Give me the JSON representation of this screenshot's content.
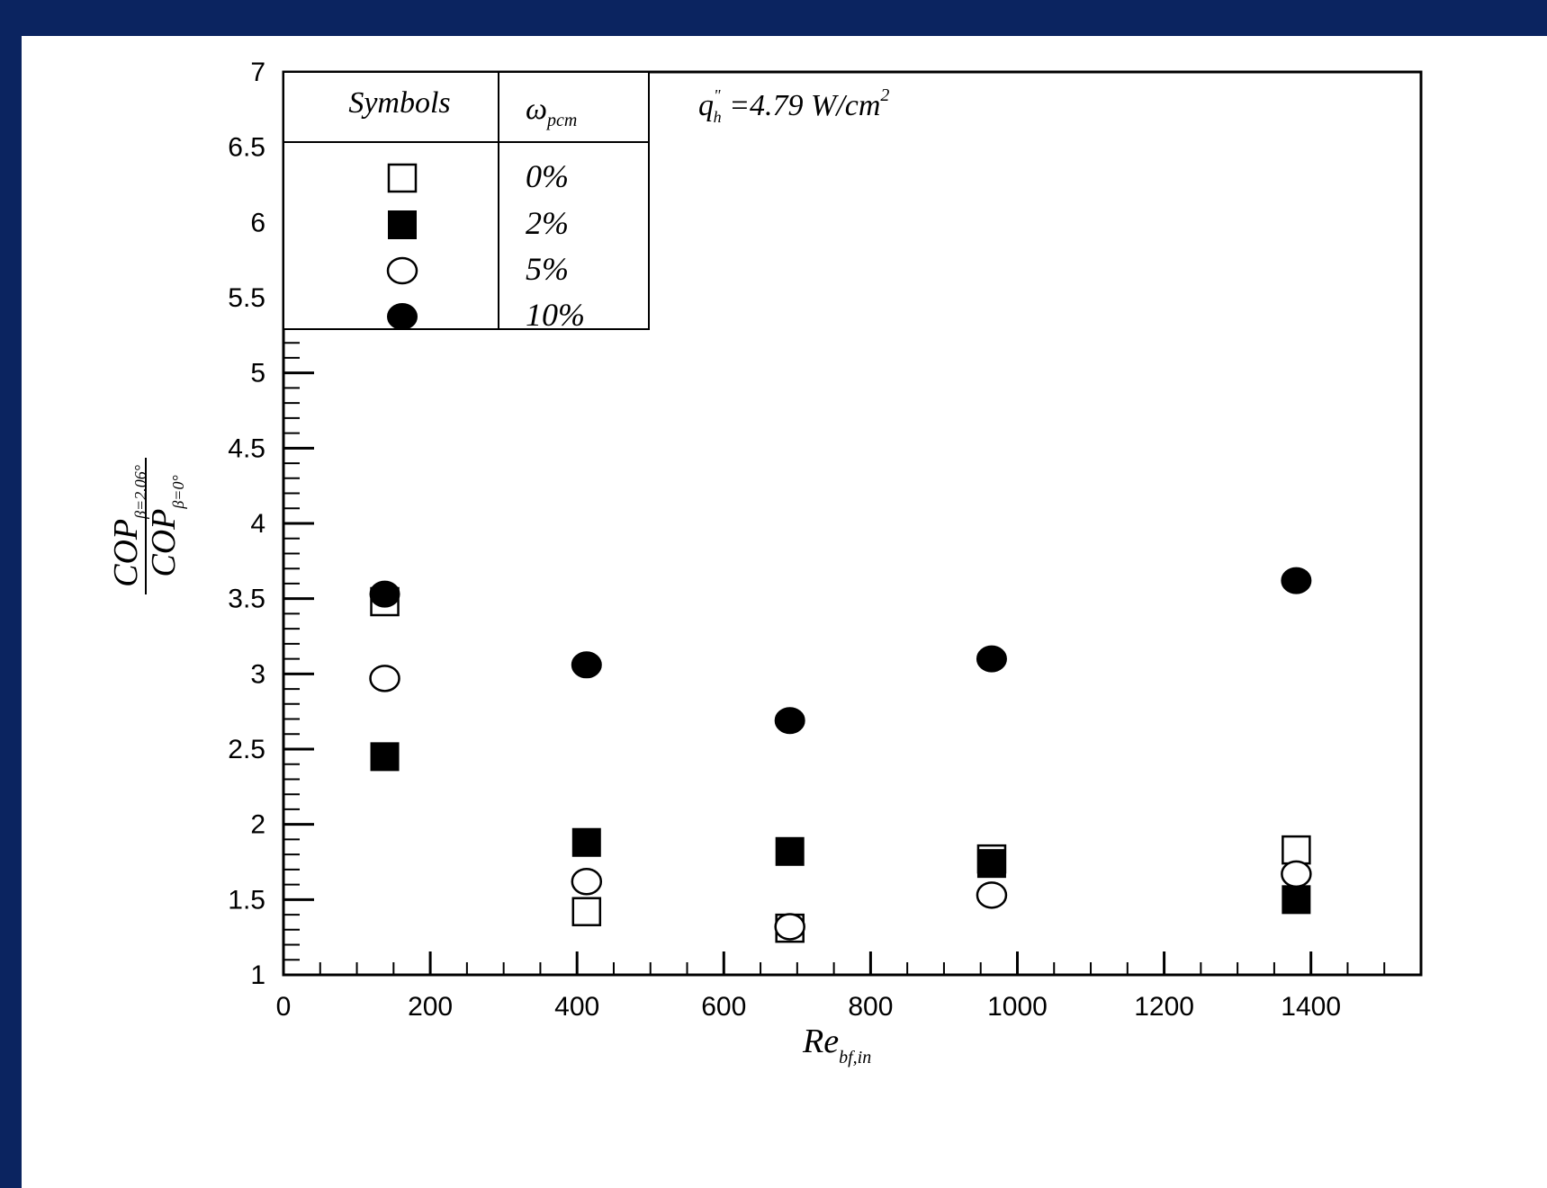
{
  "colors": {
    "frame": "#0b2460",
    "background": "#ffffff",
    "ink": "#000000"
  },
  "chart_data": {
    "type": "scatter",
    "xlim": [
      0,
      1550
    ],
    "ylim": [
      1,
      7
    ],
    "x_ticks": [
      "0",
      "200",
      "400",
      "600",
      "800",
      "1000",
      "1200",
      "1400"
    ],
    "y_ticks": [
      "1",
      "1.5",
      "2",
      "2.5",
      "3",
      "3.5",
      "4",
      "4.5",
      "5",
      "5.5",
      "6",
      "6.5",
      "7"
    ],
    "xlabel": {
      "main": "Re",
      "sub": "bf,in"
    },
    "ylabel": {
      "numerator": {
        "main": "COP",
        "sub": "β=2.06°"
      },
      "denominator": {
        "main": "COP",
        "sub": "β=0°"
      }
    },
    "annotation": {
      "main": "q",
      "sup": "\"",
      "sub": "h",
      "rest": " =4.79 W/cm",
      "sup2": "2"
    },
    "legend": {
      "position": "top-left",
      "col1_header": "Symbols",
      "col2_header": {
        "main": "ω",
        "sub": "pcm"
      }
    },
    "series": [
      {
        "name": "0%",
        "marker": "square-open",
        "x": [
          138,
          413,
          690,
          965,
          1380
        ],
        "y": [
          3.48,
          1.42,
          1.31,
          1.77,
          1.83
        ]
      },
      {
        "name": "2%",
        "marker": "square-filled",
        "x": [
          138,
          413,
          690,
          965,
          1380
        ],
        "y": [
          2.45,
          1.88,
          1.82,
          1.74,
          1.5
        ]
      },
      {
        "name": "5%",
        "marker": "circle-open",
        "x": [
          138,
          413,
          690,
          965,
          1380
        ],
        "y": [
          2.97,
          1.62,
          1.32,
          1.53,
          1.67
        ]
      },
      {
        "name": "10%",
        "marker": "circle-filled",
        "x": [
          138,
          413,
          690,
          965,
          1380
        ],
        "y": [
          3.53,
          3.06,
          2.69,
          3.1,
          3.62
        ]
      }
    ]
  }
}
